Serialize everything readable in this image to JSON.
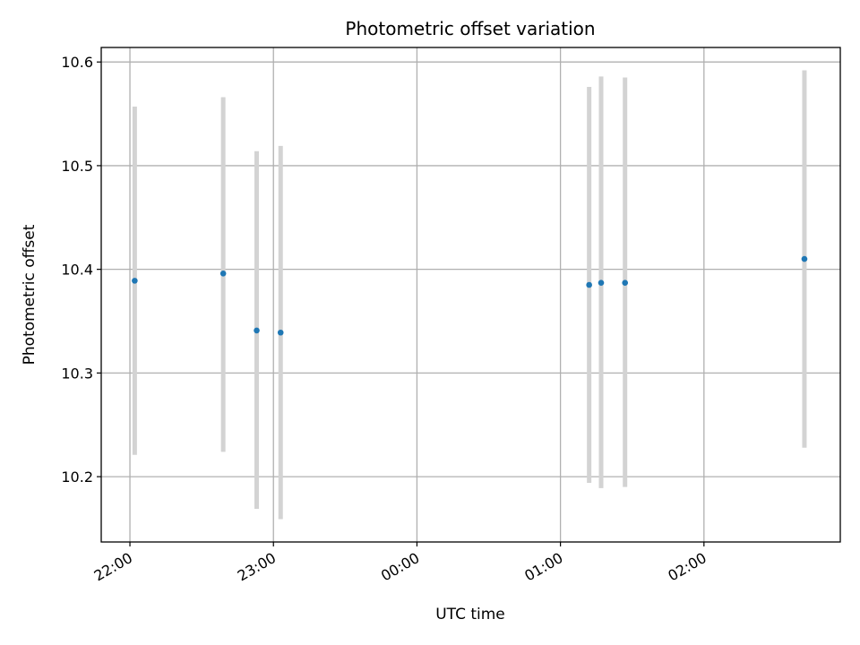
{
  "chart_data": {
    "type": "scatter",
    "title": "Photometric offset variation",
    "xlabel": "UTC time",
    "ylabel": "Photometric offset",
    "x_is_time": true,
    "xlim": [
      "21:48",
      "02:57"
    ],
    "ylim": [
      10.137,
      10.614
    ],
    "xticks": [
      {
        "t": "22:00",
        "label": "22:00"
      },
      {
        "t": "23:00",
        "label": "23:00"
      },
      {
        "t": "00:00",
        "label": "00:00"
      },
      {
        "t": "01:00",
        "label": "01:00"
      },
      {
        "t": "02:00",
        "label": "02:00"
      }
    ],
    "yticks": [
      10.2,
      10.3,
      10.4,
      10.5,
      10.6
    ],
    "ytick_labels": [
      "10.2",
      "10.3",
      "10.4",
      "10.5",
      "10.6"
    ],
    "grid": true,
    "colors": {
      "point": "#1f77b4",
      "errorbar": "#d3d3d3",
      "grid": "#b0b0b0",
      "axes": "#000000"
    },
    "series": [
      {
        "points": [
          {
            "t": "22:02",
            "y": 10.389,
            "ymin": 10.221,
            "ymax": 10.557
          },
          {
            "t": "22:39",
            "y": 10.396,
            "ymin": 10.224,
            "ymax": 10.566
          },
          {
            "t": "22:53",
            "y": 10.341,
            "ymin": 10.169,
            "ymax": 10.514
          },
          {
            "t": "23:03",
            "y": 10.339,
            "ymin": 10.159,
            "ymax": 10.519
          },
          {
            "t": "01:12",
            "y": 10.385,
            "ymin": 10.194,
            "ymax": 10.576
          },
          {
            "t": "01:17",
            "y": 10.387,
            "ymin": 10.189,
            "ymax": 10.586
          },
          {
            "t": "01:27",
            "y": 10.387,
            "ymin": 10.19,
            "ymax": 10.585
          },
          {
            "t": "02:42",
            "y": 10.41,
            "ymin": 10.228,
            "ymax": 10.592
          }
        ]
      }
    ]
  }
}
